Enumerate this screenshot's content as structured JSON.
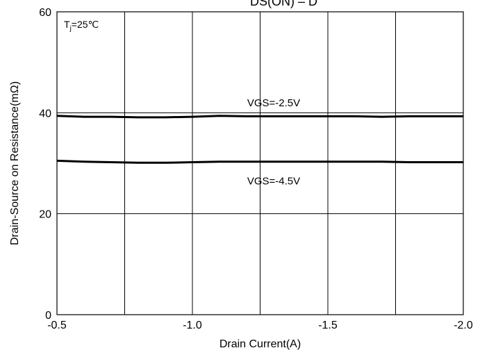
{
  "chart_data": {
    "type": "line",
    "title": "",
    "title_partial_visible": "DS(ON)  – D",
    "xlabel": "Drain Current(A)",
    "ylabel": "Drain-Source on Resistance(mΩ)",
    "xlim": [
      -0.5,
      -2.0
    ],
    "ylim": [
      0,
      60
    ],
    "x_ticks": [
      -0.5,
      -1.0,
      -1.5,
      -2.0
    ],
    "x_tick_labels": [
      "-0.5",
      "-1.0",
      "-1.5",
      "-2.0"
    ],
    "y_ticks": [
      0,
      20,
      40,
      60
    ],
    "y_tick_labels": [
      "0",
      "20",
      "40",
      "60"
    ],
    "x_grid_lines": [
      -0.5,
      -0.75,
      -1.0,
      -1.25,
      -1.5,
      -1.75,
      -2.0
    ],
    "y_grid_lines": [
      0,
      20,
      40,
      60
    ],
    "grid": true,
    "annotation_tj": {
      "base": "T",
      "sub": "j",
      "rest": "=25℃"
    },
    "series": [
      {
        "name": "VGS=-2.5V",
        "x": [
          -0.5,
          -0.6,
          -0.7,
          -0.8,
          -0.9,
          -1.0,
          -1.1,
          -1.2,
          -1.3,
          -1.4,
          -1.5,
          -1.6,
          -1.7,
          -1.8,
          -1.9,
          -2.0
        ],
        "values": [
          39.4,
          39.2,
          39.2,
          39.1,
          39.1,
          39.2,
          39.4,
          39.3,
          39.3,
          39.3,
          39.3,
          39.3,
          39.2,
          39.3,
          39.3,
          39.3
        ]
      },
      {
        "name": "VGS=-4.5V",
        "x": [
          -0.5,
          -0.6,
          -0.7,
          -0.8,
          -0.9,
          -1.0,
          -1.1,
          -1.2,
          -1.3,
          -1.4,
          -1.5,
          -1.6,
          -1.7,
          -1.8,
          -1.9,
          -2.0
        ],
        "values": [
          30.5,
          30.3,
          30.2,
          30.1,
          30.1,
          30.2,
          30.3,
          30.3,
          30.3,
          30.3,
          30.3,
          30.3,
          30.3,
          30.2,
          30.2,
          30.2
        ]
      }
    ],
    "series_label_x": [
      -1.3,
      -1.3
    ],
    "series_label_y": [
      42,
      26.5
    ]
  }
}
